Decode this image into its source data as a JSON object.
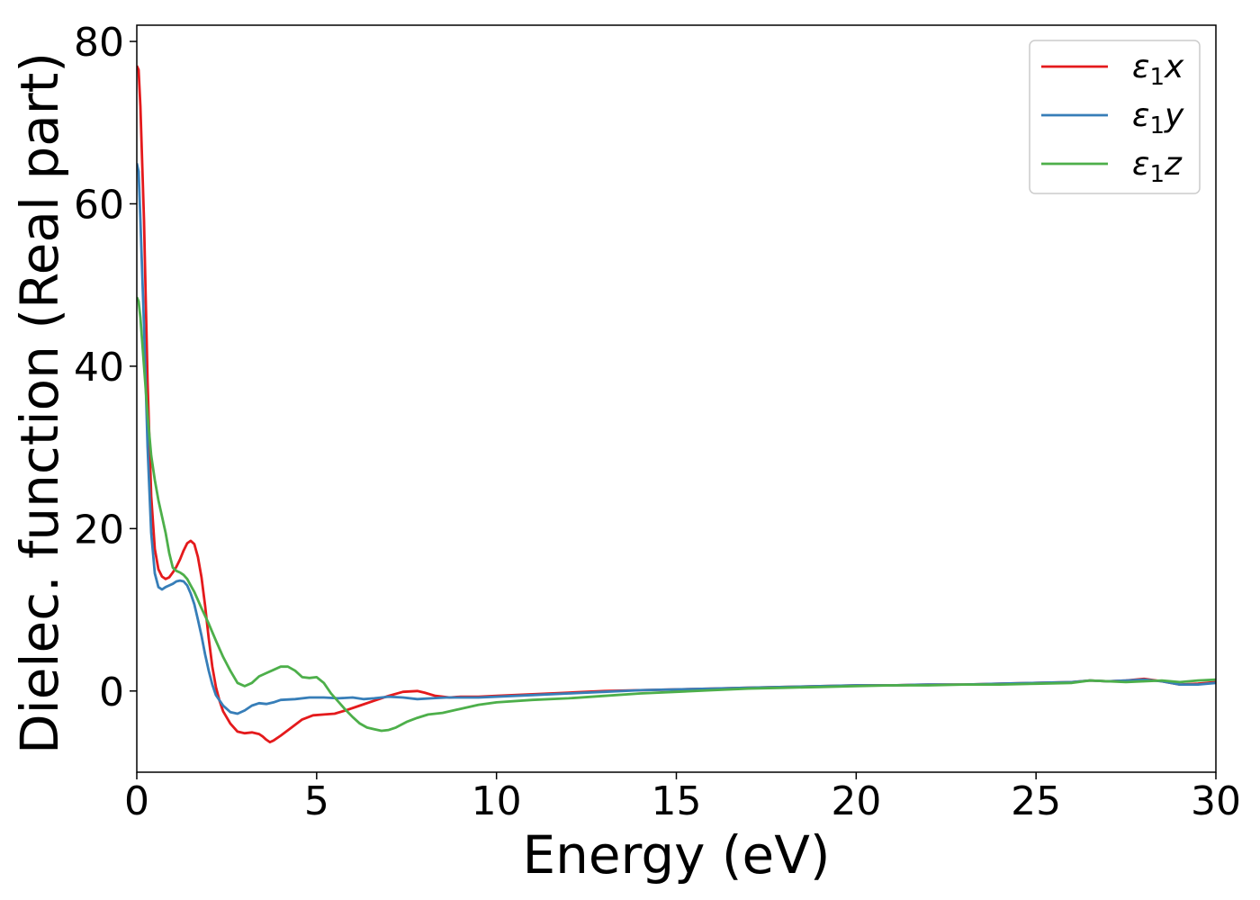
{
  "chart_data": {
    "type": "line",
    "xlabel": "Energy (eV)",
    "ylabel": "Dielec. function (Real part)",
    "xlim": [
      0,
      30
    ],
    "ylim": [
      -10,
      82
    ],
    "xticks": [
      0,
      5,
      10,
      15,
      20,
      25,
      30
    ],
    "yticks": [
      0,
      20,
      40,
      60,
      80
    ],
    "legend_position": "top-right",
    "grid": false,
    "series": [
      {
        "name": "ε₁x",
        "sym": "ε",
        "sub": "1",
        "axis": "x",
        "color": "#e41a1c",
        "x": [
          0,
          0.05,
          0.1,
          0.2,
          0.3,
          0.4,
          0.5,
          0.6,
          0.7,
          0.8,
          0.9,
          1.0,
          1.1,
          1.2,
          1.3,
          1.4,
          1.5,
          1.6,
          1.7,
          1.8,
          1.9,
          2.0,
          2.1,
          2.2,
          2.3,
          2.4,
          2.6,
          2.8,
          3.0,
          3.2,
          3.4,
          3.5,
          3.6,
          3.7,
          3.8,
          4.0,
          4.3,
          4.6,
          4.9,
          5.2,
          5.5,
          5.8,
          6.2,
          6.6,
          7.0,
          7.4,
          7.8,
          8.0,
          8.3,
          8.7,
          9.0,
          9.5,
          10,
          11,
          12,
          13,
          14,
          15,
          16,
          17,
          18,
          19,
          20,
          21,
          22,
          23,
          24,
          25,
          26,
          26.5,
          27,
          27.5,
          28,
          28.5,
          29,
          29.5,
          30
        ],
        "values": [
          77,
          76.5,
          72,
          58,
          38,
          24,
          17.5,
          15,
          14.1,
          13.8,
          14,
          14.6,
          15.3,
          16.2,
          17.3,
          18.2,
          18.5,
          18.1,
          16.5,
          14,
          10.5,
          6.5,
          3,
          0.5,
          -1.2,
          -2.5,
          -4,
          -5,
          -5.2,
          -5.1,
          -5.3,
          -5.6,
          -6,
          -6.3,
          -6.1,
          -5.5,
          -4.5,
          -3.5,
          -3,
          -2.9,
          -2.8,
          -2.4,
          -1.8,
          -1.2,
          -0.6,
          -0.1,
          0,
          -0.2,
          -0.6,
          -0.8,
          -0.7,
          -0.7,
          -0.6,
          -0.4,
          -0.2,
          0,
          0.1,
          0.2,
          0.3,
          0.4,
          0.5,
          0.6,
          0.7,
          0.7,
          0.8,
          0.8,
          0.9,
          1.0,
          1.1,
          1.3,
          1.2,
          1.3,
          1.5,
          1.2,
          0.8,
          0.9,
          1.1
        ]
      },
      {
        "name": "ε₁y",
        "sym": "ε",
        "sub": "1",
        "axis": "y",
        "color": "#377eb8",
        "x": [
          0,
          0.05,
          0.1,
          0.2,
          0.3,
          0.4,
          0.5,
          0.6,
          0.7,
          0.8,
          0.9,
          1.0,
          1.1,
          1.2,
          1.3,
          1.4,
          1.5,
          1.6,
          1.7,
          1.8,
          1.9,
          2.0,
          2.1,
          2.2,
          2.4,
          2.6,
          2.8,
          3.0,
          3.2,
          3.4,
          3.6,
          3.8,
          4.0,
          4.4,
          4.8,
          5.2,
          5.6,
          6.0,
          6.3,
          6.6,
          7.0,
          7.4,
          7.8,
          8.2,
          8.6,
          9.0,
          9.5,
          10,
          11,
          12,
          13,
          14,
          15,
          16,
          17,
          18,
          19,
          20,
          21,
          22,
          23,
          24,
          25,
          26,
          26.5,
          27,
          27.5,
          28,
          28.5,
          29,
          29.5,
          30
        ],
        "values": [
          65,
          64,
          58,
          45,
          30,
          19.5,
          14.5,
          12.8,
          12.5,
          12.8,
          13,
          13.2,
          13.5,
          13.6,
          13.5,
          13,
          12,
          10.7,
          8.8,
          6.8,
          4.5,
          2.5,
          0.8,
          -0.5,
          -1.8,
          -2.6,
          -2.8,
          -2.4,
          -1.8,
          -1.5,
          -1.6,
          -1.4,
          -1.1,
          -1.0,
          -0.8,
          -0.8,
          -0.9,
          -0.8,
          -1.0,
          -0.9,
          -0.7,
          -0.8,
          -1.0,
          -0.9,
          -0.8,
          -0.8,
          -0.8,
          -0.7,
          -0.5,
          -0.3,
          -0.1,
          0.1,
          0.2,
          0.3,
          0.4,
          0.5,
          0.6,
          0.7,
          0.7,
          0.8,
          0.8,
          0.9,
          1.0,
          1.1,
          1.3,
          1.2,
          1.3,
          1.4,
          1.2,
          0.8,
          0.8,
          1.0
        ]
      },
      {
        "name": "ε₁z",
        "sym": "ε",
        "sub": "1",
        "axis": "z",
        "color": "#4daf4a",
        "x": [
          0,
          0.05,
          0.1,
          0.2,
          0.3,
          0.4,
          0.5,
          0.6,
          0.7,
          0.8,
          0.9,
          1.0,
          1.1,
          1.2,
          1.3,
          1.4,
          1.5,
          1.6,
          1.7,
          1.8,
          2.0,
          2.2,
          2.4,
          2.6,
          2.8,
          3.0,
          3.2,
          3.4,
          3.6,
          3.8,
          4.0,
          4.2,
          4.4,
          4.6,
          4.8,
          5.0,
          5.2,
          5.4,
          5.6,
          5.8,
          6.0,
          6.2,
          6.4,
          6.6,
          6.8,
          7.0,
          7.2,
          7.5,
          7.8,
          8.1,
          8.5,
          9.0,
          9.5,
          10,
          11,
          12,
          13,
          14,
          15,
          16,
          17,
          18,
          19,
          20,
          21,
          22,
          23,
          24,
          25,
          26,
          26.5,
          27,
          27.5,
          28,
          28.5,
          29,
          29.5,
          30
        ],
        "values": [
          48.5,
          48,
          46,
          40,
          34,
          29,
          26,
          23.5,
          21.5,
          19.5,
          17,
          15.2,
          14.8,
          14.6,
          14.3,
          13.8,
          13,
          12.2,
          11.2,
          10.2,
          8.3,
          6.2,
          4.2,
          2.5,
          1.0,
          0.6,
          1.0,
          1.8,
          2.2,
          2.6,
          3.0,
          3.0,
          2.5,
          1.7,
          1.6,
          1.7,
          1.0,
          -0.3,
          -1.3,
          -2.3,
          -3.2,
          -4.0,
          -4.5,
          -4.7,
          -4.9,
          -4.8,
          -4.5,
          -3.8,
          -3.3,
          -2.9,
          -2.7,
          -2.2,
          -1.7,
          -1.4,
          -1.1,
          -0.9,
          -0.6,
          -0.3,
          -0.1,
          0.1,
          0.3,
          0.4,
          0.5,
          0.6,
          0.7,
          0.7,
          0.8,
          0.8,
          0.9,
          1.0,
          1.3,
          1.2,
          1.1,
          1.2,
          1.3,
          1.1,
          1.3,
          1.4
        ]
      }
    ]
  }
}
